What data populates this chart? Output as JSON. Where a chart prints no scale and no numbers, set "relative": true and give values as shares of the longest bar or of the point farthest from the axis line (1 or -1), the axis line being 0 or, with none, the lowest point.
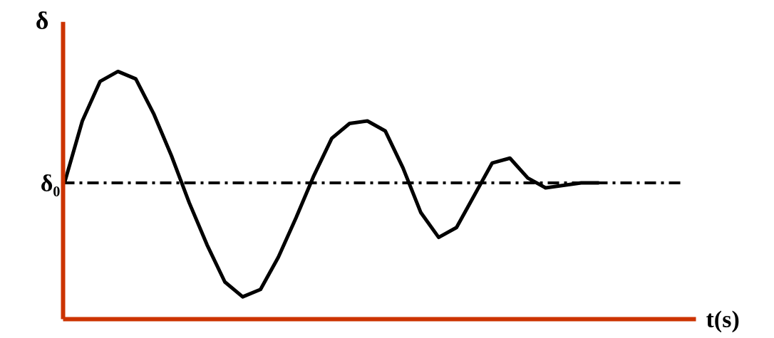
{
  "chart_data": {
    "type": "line",
    "relative": true,
    "xlabel": "t(s)",
    "ylabel": "δ",
    "categories": [
      null,
      null,
      null,
      null,
      null,
      null,
      null,
      null,
      null,
      null,
      null,
      null,
      null,
      null,
      null,
      null,
      null,
      null,
      null,
      null,
      null,
      null,
      null,
      null,
      null,
      null,
      null,
      null,
      null,
      null,
      null
    ],
    "series": [
      {
        "color": "#000000",
        "values": [
          0.55,
          0.8,
          0.96,
          1.0,
          0.97,
          0.83,
          0.66,
          0.47,
          0.3,
          0.15,
          0.09,
          0.12,
          0.25,
          0.41,
          0.58,
          0.73,
          0.79,
          0.8,
          0.76,
          0.61,
          0.43,
          0.33,
          0.37,
          0.5,
          0.63,
          0.65,
          0.57,
          0.53,
          0.54,
          0.55,
          0.55
        ]
      }
    ],
    "ref_lines": [
      {
        "axis": "y",
        "value": 0.55,
        "label": "δ₀",
        "color": "#000000",
        "line_style": "dashed"
      }
    ]
  }
}
